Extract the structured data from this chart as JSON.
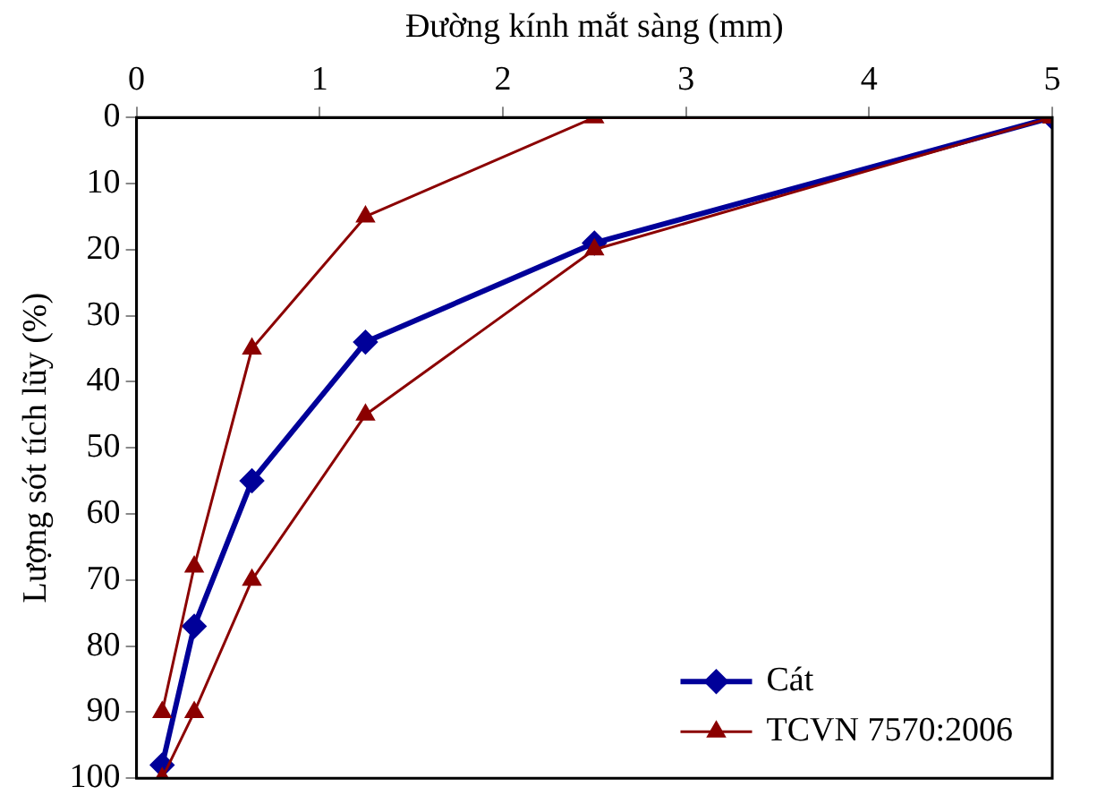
{
  "chart_data": {
    "type": "line",
    "xlabel": "Đường kính mắt sàng (mm)",
    "ylabel": "Lượng sót tích lũy (%)",
    "x": [
      0.14,
      0.315,
      0.63,
      1.25,
      2.5,
      5
    ],
    "xlim": [
      0,
      5
    ],
    "xticks": [
      0,
      1,
      2,
      3,
      4,
      5
    ],
    "ylim": [
      100,
      0
    ],
    "yticks": [
      0,
      10,
      20,
      30,
      40,
      50,
      60,
      70,
      80,
      90,
      100
    ],
    "grid": false,
    "legend": "bottom right",
    "series": [
      {
        "name": "Cát",
        "color": "#000099",
        "marker": "diamond",
        "values": [
          98,
          77,
          55,
          34,
          19,
          0
        ]
      },
      {
        "name": "TCVN 7570:2006",
        "color": "#8b0000",
        "marker": "triangle",
        "values": [
          90,
          68,
          35,
          15,
          0,
          0
        ]
      },
      {
        "color": "#8b0000",
        "marker": "triangle",
        "values": [
          100,
          90,
          70,
          45,
          20,
          0
        ]
      }
    ]
  }
}
